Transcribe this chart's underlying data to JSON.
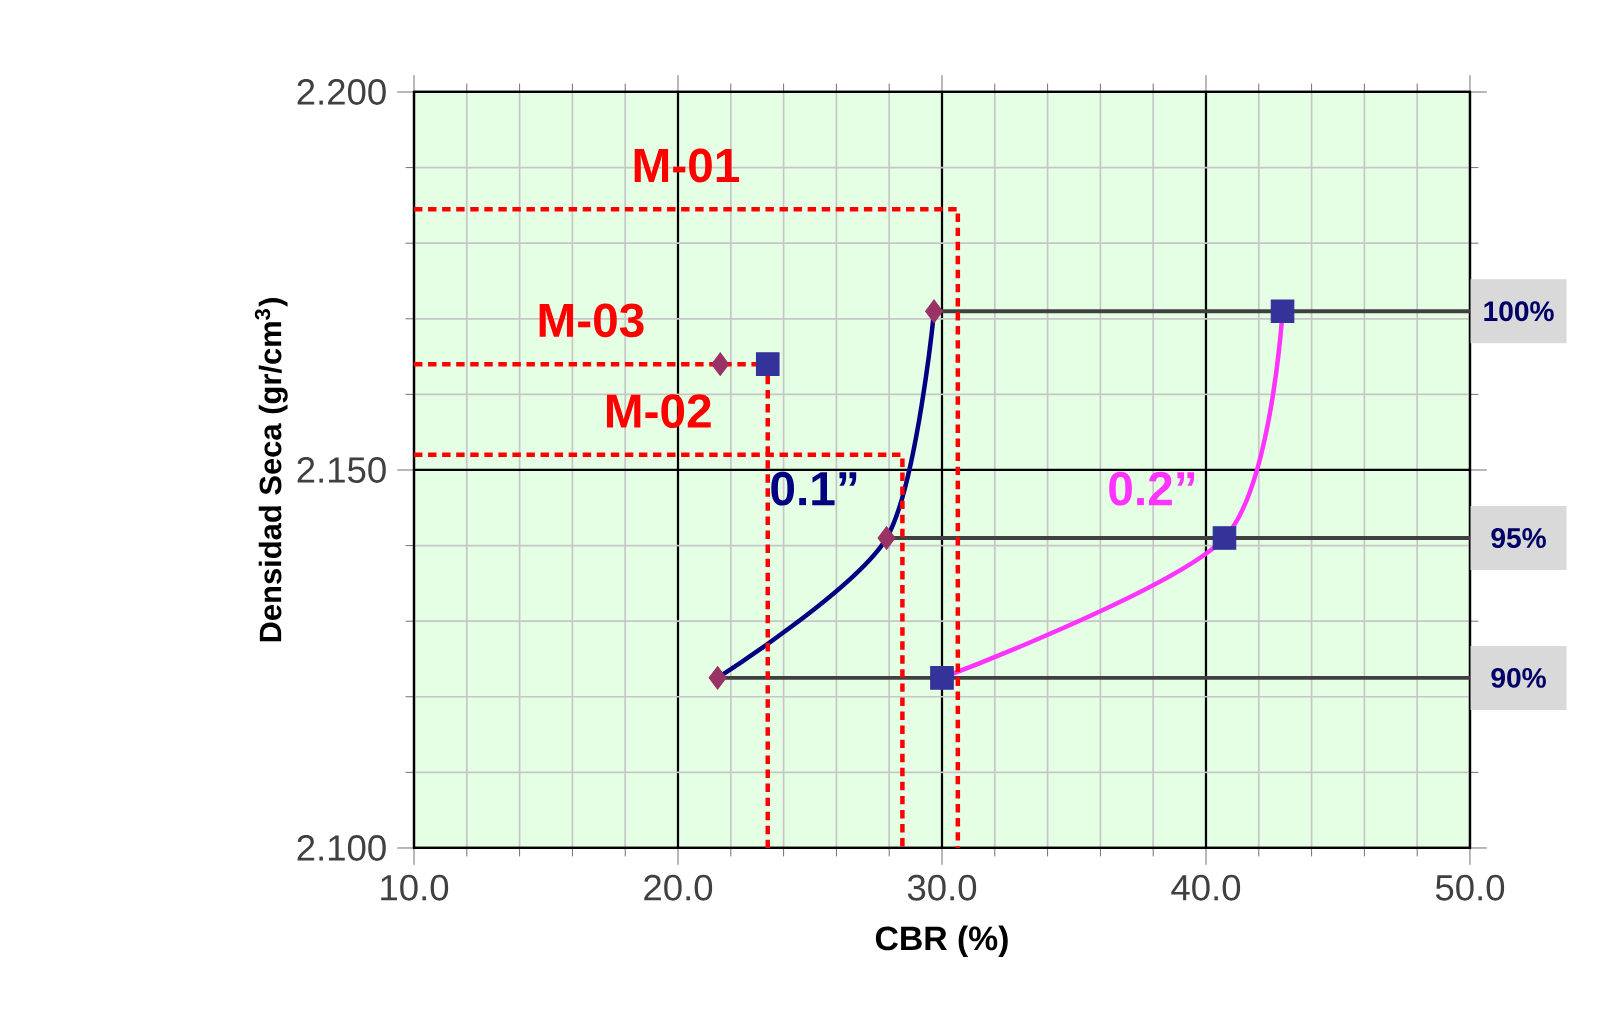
{
  "chart_data": {
    "type": "line",
    "xlabel": "CBR  (%)",
    "ylabel": "Densidad Seca (gr/cm$^{3}$)",
    "xlim": [
      10,
      50
    ],
    "ylim": [
      2.1,
      2.2
    ],
    "xticks": [
      {
        "value": 10,
        "label": "10.0"
      },
      {
        "value": 20,
        "label": "20.0"
      },
      {
        "value": 30,
        "label": "30.0"
      },
      {
        "value": 40,
        "label": "40.0"
      },
      {
        "value": 50,
        "label": "50.0"
      }
    ],
    "yticks": [
      {
        "value": 2.1,
        "label": "2.100"
      },
      {
        "value": 2.15,
        "label": "2.150"
      },
      {
        "value": 2.2,
        "label": "2.200"
      }
    ],
    "grid": true,
    "series": [
      {
        "name": "0.1”",
        "color": "#000080",
        "x": [
          21.5,
          27.9,
          29.7
        ],
        "values": [
          2.1225,
          2.141,
          2.171
        ]
      },
      {
        "type": "scatter",
        "color": "#993366",
        "marker": "diamond",
        "x": [
          21.5,
          27.9,
          29.7,
          21.6
        ],
        "values": [
          2.1225,
          2.141,
          2.171,
          2.164
        ]
      },
      {
        "name": "0.2”",
        "color": "#ff33ff",
        "x": [
          30.0,
          40.7,
          42.9
        ],
        "values": [
          2.1225,
          2.141,
          2.171
        ]
      },
      {
        "type": "scatter",
        "color": "#333399",
        "marker": "square",
        "x": [
          30.0,
          40.7,
          42.9,
          23.4
        ],
        "values": [
          2.1225,
          2.141,
          2.171,
          2.164
        ]
      },
      {
        "name": "M-01",
        "color": "#ff0000",
        "line_style": "dashed",
        "x": [
          10,
          30.6,
          30.6
        ],
        "values": [
          2.1845,
          2.1845,
          2.1
        ]
      },
      {
        "name": "M-03",
        "color": "#ff0000",
        "line_style": "dashed",
        "x": [
          10,
          23.4,
          23.4
        ],
        "values": [
          2.164,
          2.164,
          2.1
        ]
      },
      {
        "name": "M-02",
        "color": "#ff0000",
        "line_style": "dashed",
        "x": [
          10,
          28.5,
          28.5
        ],
        "values": [
          2.152,
          2.152,
          2.1
        ]
      }
    ],
    "ref_lines": [
      {
        "axis": "y",
        "value": 2.171,
        "color": "#404040"
      },
      {
        "axis": "y",
        "value": 2.141,
        "color": "#404040"
      },
      {
        "axis": "y",
        "value": 2.1225,
        "color": "#404040"
      }
    ],
    "annotations": [
      "100%",
      "95%",
      "90%"
    ]
  }
}
